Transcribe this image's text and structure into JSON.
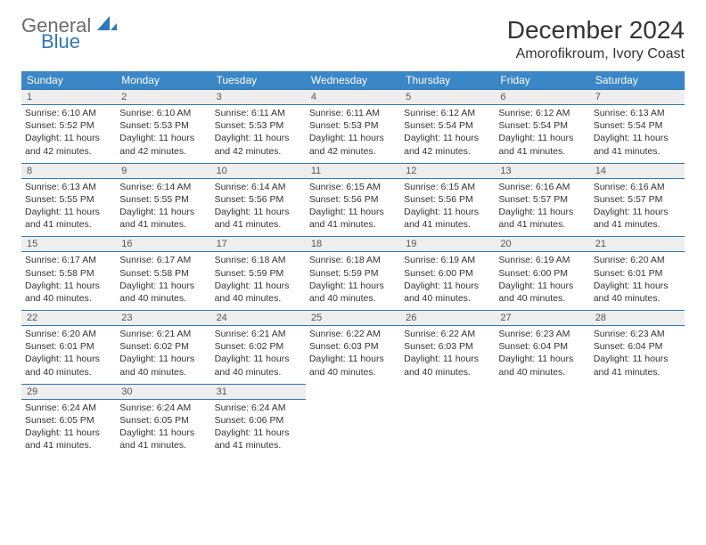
{
  "logo": {
    "text1": "General",
    "text2": "Blue",
    "iconColor": "#2f77b6"
  },
  "title": "December 2024",
  "location": "Amorofikroum, Ivory Coast",
  "colors": {
    "headerBg": "#3b86c6",
    "headerText": "#ffffff",
    "dayNumBg": "#eeeeee",
    "borderColor": "#2f77b6",
    "bodyText": "#333333"
  },
  "dayNames": [
    "Sunday",
    "Monday",
    "Tuesday",
    "Wednesday",
    "Thursday",
    "Friday",
    "Saturday"
  ],
  "weeks": [
    [
      {
        "n": "1",
        "sr": "6:10 AM",
        "ss": "5:52 PM",
        "dl": "11 hours and 42 minutes."
      },
      {
        "n": "2",
        "sr": "6:10 AM",
        "ss": "5:53 PM",
        "dl": "11 hours and 42 minutes."
      },
      {
        "n": "3",
        "sr": "6:11 AM",
        "ss": "5:53 PM",
        "dl": "11 hours and 42 minutes."
      },
      {
        "n": "4",
        "sr": "6:11 AM",
        "ss": "5:53 PM",
        "dl": "11 hours and 42 minutes."
      },
      {
        "n": "5",
        "sr": "6:12 AM",
        "ss": "5:54 PM",
        "dl": "11 hours and 42 minutes."
      },
      {
        "n": "6",
        "sr": "6:12 AM",
        "ss": "5:54 PM",
        "dl": "11 hours and 41 minutes."
      },
      {
        "n": "7",
        "sr": "6:13 AM",
        "ss": "5:54 PM",
        "dl": "11 hours and 41 minutes."
      }
    ],
    [
      {
        "n": "8",
        "sr": "6:13 AM",
        "ss": "5:55 PM",
        "dl": "11 hours and 41 minutes."
      },
      {
        "n": "9",
        "sr": "6:14 AM",
        "ss": "5:55 PM",
        "dl": "11 hours and 41 minutes."
      },
      {
        "n": "10",
        "sr": "6:14 AM",
        "ss": "5:56 PM",
        "dl": "11 hours and 41 minutes."
      },
      {
        "n": "11",
        "sr": "6:15 AM",
        "ss": "5:56 PM",
        "dl": "11 hours and 41 minutes."
      },
      {
        "n": "12",
        "sr": "6:15 AM",
        "ss": "5:56 PM",
        "dl": "11 hours and 41 minutes."
      },
      {
        "n": "13",
        "sr": "6:16 AM",
        "ss": "5:57 PM",
        "dl": "11 hours and 41 minutes."
      },
      {
        "n": "14",
        "sr": "6:16 AM",
        "ss": "5:57 PM",
        "dl": "11 hours and 41 minutes."
      }
    ],
    [
      {
        "n": "15",
        "sr": "6:17 AM",
        "ss": "5:58 PM",
        "dl": "11 hours and 40 minutes."
      },
      {
        "n": "16",
        "sr": "6:17 AM",
        "ss": "5:58 PM",
        "dl": "11 hours and 40 minutes."
      },
      {
        "n": "17",
        "sr": "6:18 AM",
        "ss": "5:59 PM",
        "dl": "11 hours and 40 minutes."
      },
      {
        "n": "18",
        "sr": "6:18 AM",
        "ss": "5:59 PM",
        "dl": "11 hours and 40 minutes."
      },
      {
        "n": "19",
        "sr": "6:19 AM",
        "ss": "6:00 PM",
        "dl": "11 hours and 40 minutes."
      },
      {
        "n": "20",
        "sr": "6:19 AM",
        "ss": "6:00 PM",
        "dl": "11 hours and 40 minutes."
      },
      {
        "n": "21",
        "sr": "6:20 AM",
        "ss": "6:01 PM",
        "dl": "11 hours and 40 minutes."
      }
    ],
    [
      {
        "n": "22",
        "sr": "6:20 AM",
        "ss": "6:01 PM",
        "dl": "11 hours and 40 minutes."
      },
      {
        "n": "23",
        "sr": "6:21 AM",
        "ss": "6:02 PM",
        "dl": "11 hours and 40 minutes."
      },
      {
        "n": "24",
        "sr": "6:21 AM",
        "ss": "6:02 PM",
        "dl": "11 hours and 40 minutes."
      },
      {
        "n": "25",
        "sr": "6:22 AM",
        "ss": "6:03 PM",
        "dl": "11 hours and 40 minutes."
      },
      {
        "n": "26",
        "sr": "6:22 AM",
        "ss": "6:03 PM",
        "dl": "11 hours and 40 minutes."
      },
      {
        "n": "27",
        "sr": "6:23 AM",
        "ss": "6:04 PM",
        "dl": "11 hours and 40 minutes."
      },
      {
        "n": "28",
        "sr": "6:23 AM",
        "ss": "6:04 PM",
        "dl": "11 hours and 41 minutes."
      }
    ],
    [
      {
        "n": "29",
        "sr": "6:24 AM",
        "ss": "6:05 PM",
        "dl": "11 hours and 41 minutes."
      },
      {
        "n": "30",
        "sr": "6:24 AM",
        "ss": "6:05 PM",
        "dl": "11 hours and 41 minutes."
      },
      {
        "n": "31",
        "sr": "6:24 AM",
        "ss": "6:06 PM",
        "dl": "11 hours and 41 minutes."
      },
      null,
      null,
      null,
      null
    ]
  ],
  "labels": {
    "sunrise": "Sunrise:",
    "sunset": "Sunset:",
    "daylight": "Daylight:"
  }
}
